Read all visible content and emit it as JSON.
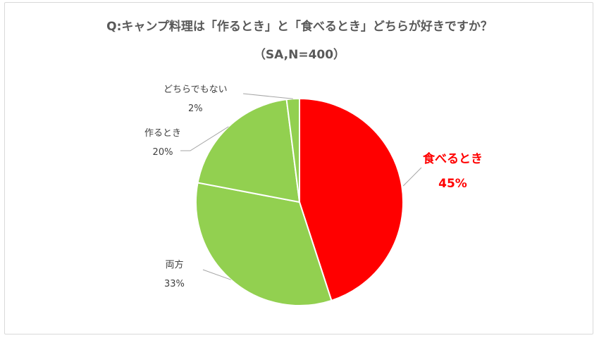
{
  "chart_data": {
    "type": "pie",
    "title": "Q:キャンプ料理は「作るとき」と「食べるとき」どちらが好きですか？",
    "subtitle": "（SA,N=400）",
    "slices": [
      {
        "label": "食べるとき",
        "value": 45,
        "value_label": "45%",
        "color": "#ff0000",
        "highlight": true
      },
      {
        "label": "両方",
        "value": 33,
        "value_label": "33%",
        "color": "#92d050",
        "highlight": false
      },
      {
        "label": "作るとき",
        "value": 20,
        "value_label": "20%",
        "color": "#92d050",
        "highlight": false
      },
      {
        "label": "どちらでもない",
        "value": 2,
        "value_label": "2%",
        "color": "#92d050",
        "highlight": false
      }
    ],
    "start_angle": "12 o'clock",
    "direction": "clockwise",
    "legend": "none",
    "leader_line_color": "#a6a6a6"
  }
}
